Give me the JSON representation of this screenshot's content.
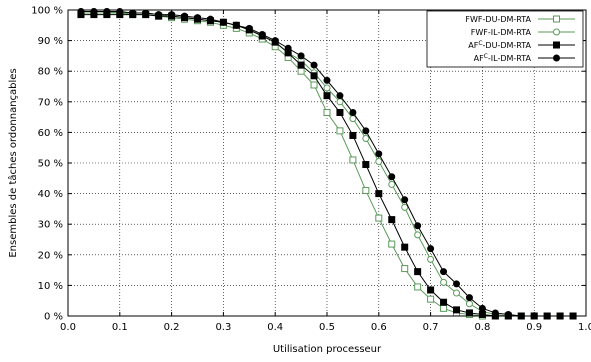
{
  "chart_data": {
    "type": "line",
    "title": "",
    "xlabel": "Utilisation processeur",
    "ylabel": "Ensembles de tâches ordonnançables",
    "xlim": [
      0.0,
      1.0
    ],
    "ylim": [
      0,
      100
    ],
    "grid": true,
    "grid_style": "dotted",
    "legend_position": "top-right",
    "x_ticks": [
      "0.0",
      "0.1",
      "0.2",
      "0.3",
      "0.4",
      "0.5",
      "0.6",
      "0.7",
      "0.8",
      "0.9",
      "1.0"
    ],
    "y_ticks": [
      "0 %",
      "10 %",
      "20 %",
      "30 %",
      "40 %",
      "50 %",
      "60 %",
      "70 %",
      "80 %",
      "90 %",
      "100 %"
    ],
    "x": [
      0.025,
      0.05,
      0.075,
      0.1,
      0.125,
      0.15,
      0.175,
      0.2,
      0.225,
      0.25,
      0.275,
      0.3,
      0.325,
      0.35,
      0.375,
      0.4,
      0.425,
      0.45,
      0.475,
      0.5,
      0.525,
      0.55,
      0.575,
      0.6,
      0.625,
      0.65,
      0.675,
      0.7,
      0.725,
      0.75,
      0.775,
      0.8,
      0.825,
      0.85,
      0.875,
      0.9,
      0.925,
      0.95,
      0.975
    ],
    "series": [
      {
        "name": "FWF-DU-DM-RTA",
        "color": "#5a9a5a",
        "marker": "square-open",
        "values": [
          99,
          99,
          99,
          99,
          98.5,
          98.5,
          98,
          97.5,
          97,
          96.5,
          96,
          95,
          94,
          92.5,
          90.5,
          88,
          84.5,
          80,
          75.5,
          66.5,
          60.5,
          51,
          41,
          32,
          23.5,
          15.5,
          9.5,
          5.5,
          2.5,
          1,
          0.5,
          0,
          0,
          0,
          0,
          0,
          0,
          0,
          0
        ]
      },
      {
        "name": "FWF-IL-DM-RTA",
        "color": "#5a9a5a",
        "marker": "circle-open",
        "values": [
          99.5,
          99.5,
          99.5,
          99,
          99,
          99,
          98.5,
          98,
          97.5,
          97,
          96.5,
          96,
          95,
          93.5,
          91.5,
          89.5,
          86,
          83.5,
          79.5,
          74.5,
          70,
          64.5,
          58,
          50.5,
          43,
          35.5,
          26.5,
          18.5,
          11,
          7.5,
          4,
          1.5,
          0.5,
          0,
          0,
          0,
          0,
          0,
          0
        ]
      },
      {
        "name": "AF-DU-DM-RTA",
        "color": "#000000",
        "marker": "square-filled",
        "values": [
          98.5,
          98.5,
          98.5,
          98.5,
          98.5,
          98.5,
          98,
          98,
          97.5,
          97,
          96.5,
          96,
          95,
          93.5,
          91.5,
          89.5,
          86,
          82,
          78.5,
          72,
          66.5,
          59,
          49.5,
          40,
          31.5,
          22.5,
          14.5,
          8.5,
          4.5,
          2,
          1,
          0.5,
          0,
          0,
          0,
          0,
          0,
          0,
          0
        ]
      },
      {
        "name": "AF-IL-DM-RTA",
        "color": "#000000",
        "marker": "circle-filled",
        "values": [
          99.5,
          99.5,
          99.5,
          99.5,
          99,
          99,
          98.5,
          98.5,
          98,
          97.5,
          97,
          96,
          95,
          94,
          92,
          90,
          87.5,
          85,
          82,
          77,
          72,
          66.5,
          60.5,
          53,
          45.5,
          38,
          29.5,
          22,
          14.5,
          10.5,
          6,
          2.5,
          1,
          0.5,
          0,
          0,
          0,
          0,
          0
        ]
      }
    ],
    "legend_labels": [
      {
        "prefix": "FWF-DU-DM-RTA",
        "sup": "",
        "suffix": ""
      },
      {
        "prefix": "FWF-IL-DM-RTA",
        "sup": "",
        "suffix": ""
      },
      {
        "prefix": "AF",
        "sup": "C",
        "suffix": "-DU-DM-RTA"
      },
      {
        "prefix": "AF",
        "sup": "C",
        "suffix": "-IL-DM-RTA"
      }
    ]
  }
}
